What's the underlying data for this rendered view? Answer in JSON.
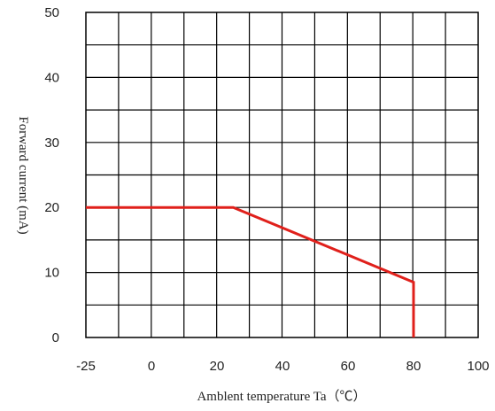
{
  "chart_data": {
    "type": "line",
    "title": "",
    "xlabel": "Amblent temperature Ta（℃）",
    "ylabel": "Forward current (mA)",
    "xlim": [
      -25,
      100
    ],
    "ylim": [
      0,
      50
    ],
    "x_ticks": [
      "-25",
      "0",
      "20",
      "40",
      "60",
      "80",
      "100"
    ],
    "y_ticks": [
      "0",
      "10",
      "20",
      "30",
      "40",
      "50"
    ],
    "grid": true,
    "legend": "none",
    "series": [
      {
        "color": "#e0201b",
        "points": [
          {
            "x": -25,
            "y": 20
          },
          {
            "x": 25,
            "y": 20
          },
          {
            "x": 80,
            "y": 8.5
          },
          {
            "x": 80,
            "y": 0
          }
        ]
      }
    ]
  }
}
